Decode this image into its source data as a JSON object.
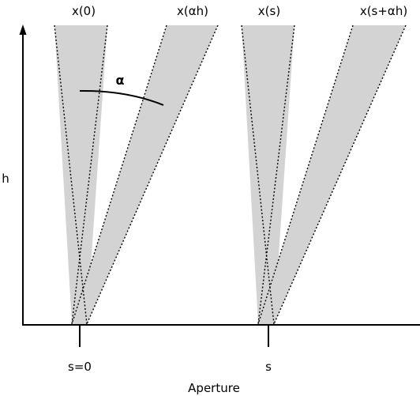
{
  "labels": {
    "top_0": "x(0)",
    "top_1": "x(αh)",
    "top_2": "x(s)",
    "top_3": "x(s+αh)",
    "y_axis": "h",
    "angle": "α",
    "tick_0": "s=0",
    "tick_1": "s",
    "x_axis": "Aperture"
  },
  "colors": {
    "fill": "#d3d3d3",
    "stroke": "#000000"
  }
}
